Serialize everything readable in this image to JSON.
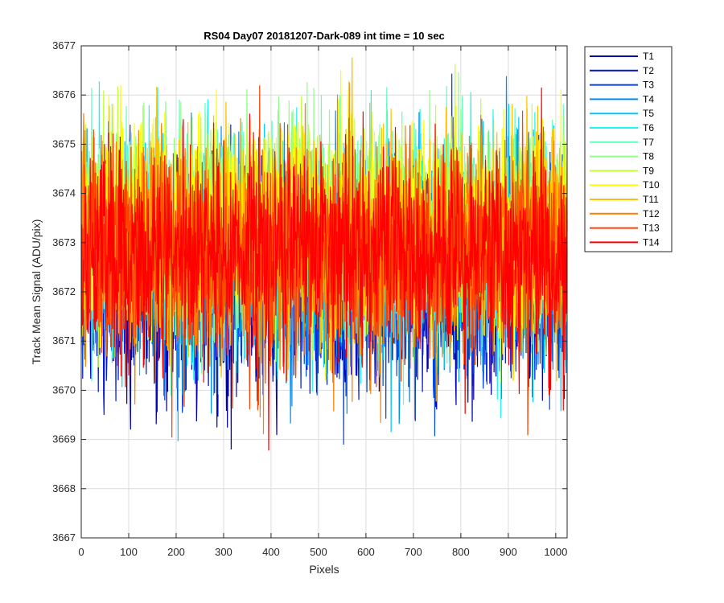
{
  "chart_data": {
    "type": "line",
    "title": "RS04 Day07 20181207-Dark-089 int time = 10 sec",
    "xlabel": "Pixels",
    "ylabel": "Track Mean Signal (ADU/pix)",
    "xlim": [
      0,
      1024
    ],
    "ylim": [
      3667,
      3677
    ],
    "xticks": [
      0,
      100,
      200,
      300,
      400,
      500,
      600,
      700,
      800,
      900,
      1000
    ],
    "yticks": [
      3667,
      3668,
      3669,
      3670,
      3671,
      3672,
      3673,
      3674,
      3675,
      3676,
      3677
    ],
    "grid": true,
    "legend_location": "outside-top-right",
    "n_pixels": 1024,
    "series": [
      {
        "name": "T1",
        "color": "#0000b0",
        "mean": 3672.1,
        "std": 1.05
      },
      {
        "name": "T2",
        "color": "#0018d0",
        "mean": 3672.2,
        "std": 1.05
      },
      {
        "name": "T3",
        "color": "#0045e6",
        "mean": 3672.3,
        "std": 1.05
      },
      {
        "name": "T4",
        "color": "#008ff0",
        "mean": 3672.6,
        "std": 1.05
      },
      {
        "name": "T5",
        "color": "#00c8ff",
        "mean": 3672.9,
        "std": 1.05
      },
      {
        "name": "T6",
        "color": "#1ff5f0",
        "mean": 3673.1,
        "std": 1.05
      },
      {
        "name": "T7",
        "color": "#5fffc0",
        "mean": 3673.2,
        "std": 1.05
      },
      {
        "name": "T8",
        "color": "#90ff8a",
        "mean": 3673.3,
        "std": 1.05
      },
      {
        "name": "T9",
        "color": "#c4ff3a",
        "mean": 3673.3,
        "std": 1.05
      },
      {
        "name": "T10",
        "color": "#ffff00",
        "mean": 3673.3,
        "std": 1.05
      },
      {
        "name": "T11",
        "color": "#ffc000",
        "mean": 3673.0,
        "std": 1.05
      },
      {
        "name": "T12",
        "color": "#ff8000",
        "mean": 3672.8,
        "std": 1.05
      },
      {
        "name": "T13",
        "color": "#ff4000",
        "mean": 3672.8,
        "std": 1.05
      },
      {
        "name": "T14",
        "color": "#ff0000",
        "mean": 3672.8,
        "std": 1.05
      }
    ]
  }
}
